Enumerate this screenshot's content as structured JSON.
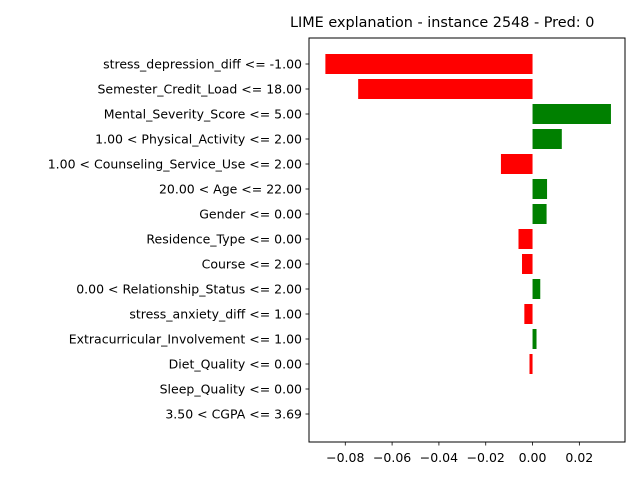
{
  "chart_data": {
    "type": "bar",
    "orientation": "horizontal",
    "title": "LIME explanation - instance 2548 - Pred: 0",
    "xlabel": "",
    "ylabel": "",
    "xlim": [
      -0.0955,
      0.0395
    ],
    "xticks": [
      -0.08,
      -0.06,
      -0.04,
      -0.02,
      0.0,
      0.02
    ],
    "xtick_labels": [
      "−0.08",
      "−0.06",
      "−0.04",
      "−0.02",
      "0.00",
      "0.02"
    ],
    "grid": false,
    "colors": {
      "positive": "#008000",
      "negative": "#ff0000"
    },
    "categories": [
      "stress_depression_diff <= -1.00",
      "Semester_Credit_Load <= 18.00",
      "Mental_Severity_Score <= 5.00",
      "1.00 < Physical_Activity <= 2.00",
      "1.00 < Counseling_Service_Use <= 2.00",
      "20.00 < Age <= 22.00",
      "Gender <= 0.00",
      "Residence_Type <= 0.00",
      "Course <= 2.00",
      "0.00 < Relationship_Status <= 2.00",
      "stress_anxiety_diff <= 1.00",
      "Extracurricular_Involvement <= 1.00",
      "Diet_Quality <= 0.00",
      "Sleep_Quality <= 0.00",
      "3.50 < CGPA <= 3.69"
    ],
    "values": [
      -0.0885,
      -0.0745,
      0.0335,
      0.0125,
      -0.0135,
      0.0062,
      0.006,
      -0.006,
      -0.0045,
      0.0033,
      -0.0035,
      0.0017,
      -0.0013,
      0.0,
      0.0
    ]
  }
}
